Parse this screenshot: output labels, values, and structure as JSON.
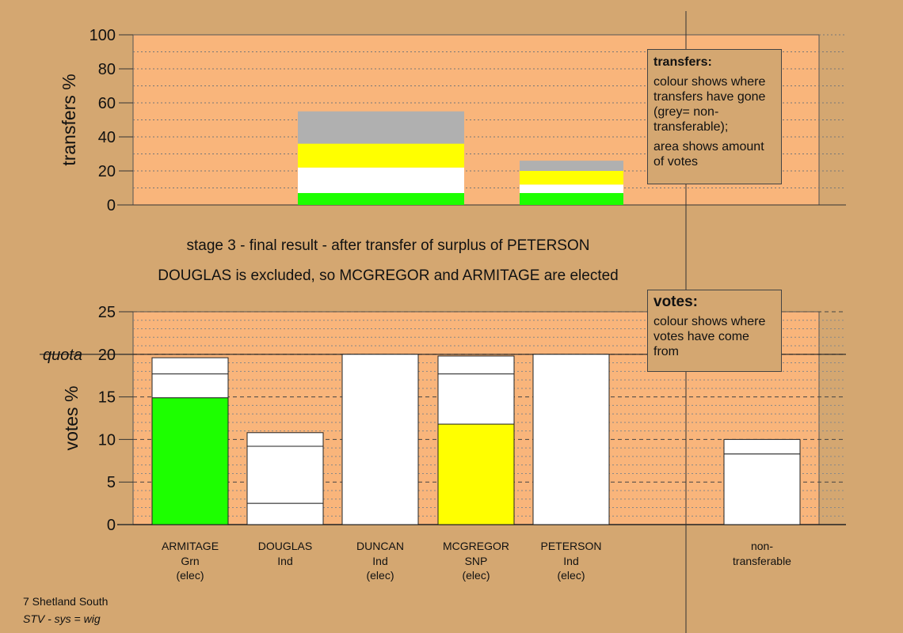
{
  "stage_text": {
    "line1": "stage 3 - final result - after transfer of surplus of PETERSON",
    "line2": "DOUGLAS is excluded, so MCGREGOR and ARMITAGE are elected"
  },
  "legends": {
    "transfers": {
      "title": "transfers:",
      "p1": "colour shows where transfers have gone (grey= non-transferable);",
      "p2": "area shows amount of votes"
    },
    "votes": {
      "title": "votes:",
      "p1": "colour shows where votes have come from"
    }
  },
  "footer": {
    "area": "7 Shetland South",
    "system": "STV - sys = wig"
  },
  "colors": {
    "background": "#d4a771",
    "plot_background": "#f9b57b",
    "green": "#1dff00",
    "yellow": "#ffff00",
    "white": "#ffffff",
    "grey": "#b0b0b0"
  },
  "chart_data": [
    {
      "type": "bar",
      "stacked": true,
      "ylabel": "transfers %",
      "ylim": [
        0,
        100
      ],
      "yticks": [
        0,
        20,
        40,
        60,
        80,
        100
      ],
      "grid": true,
      "bars": [
        {
          "segments": [
            {
              "value": 7,
              "color": "green"
            },
            {
              "value": 15,
              "color": "white"
            },
            {
              "value": 14,
              "color": "yellow"
            },
            {
              "value": 19,
              "color": "grey"
            }
          ]
        },
        {
          "segments": [
            {
              "value": 7,
              "color": "green"
            },
            {
              "value": 5,
              "color": "white"
            },
            {
              "value": 8,
              "color": "yellow"
            },
            {
              "value": 6,
              "color": "grey"
            }
          ]
        }
      ]
    },
    {
      "type": "bar",
      "stacked": true,
      "ylabel": "votes %",
      "ylim": [
        0,
        25
      ],
      "yticks": [
        0,
        5,
        10,
        15,
        20,
        25
      ],
      "quota": 20,
      "quota_label": "quota",
      "grid": true,
      "categories": [
        {
          "name": "ARMITAGE",
          "party": "Grn",
          "status": "(elec)"
        },
        {
          "name": "DOUGLAS",
          "party": "Ind",
          "status": ""
        },
        {
          "name": "DUNCAN",
          "party": "Ind",
          "status": "(elec)"
        },
        {
          "name": "MCGREGOR",
          "party": "SNP",
          "status": "(elec)"
        },
        {
          "name": "PETERSON",
          "party": "Ind",
          "status": "(elec)"
        },
        {
          "name": "non-",
          "party": "transferable",
          "status": ""
        }
      ],
      "bars": [
        {
          "segments": [
            {
              "value": 14.9,
              "color": "green"
            },
            {
              "value": 2.8,
              "color": "white"
            },
            {
              "value": 1.9,
              "color": "white"
            }
          ]
        },
        {
          "segments": [
            {
              "value": 2.5,
              "color": "white"
            },
            {
              "value": 6.7,
              "color": "white"
            },
            {
              "value": 1.6,
              "color": "white"
            }
          ]
        },
        {
          "segments": [
            {
              "value": 20,
              "color": "white"
            }
          ]
        },
        {
          "segments": [
            {
              "value": 11.8,
              "color": "yellow"
            },
            {
              "value": 5.9,
              "color": "white"
            },
            {
              "value": 2.1,
              "color": "white"
            }
          ]
        },
        {
          "segments": [
            {
              "value": 20,
              "color": "white"
            }
          ]
        },
        null,
        {
          "segments": [
            {
              "value": 8.3,
              "color": "white"
            },
            {
              "value": 1.7,
              "color": "white"
            }
          ]
        }
      ]
    }
  ]
}
